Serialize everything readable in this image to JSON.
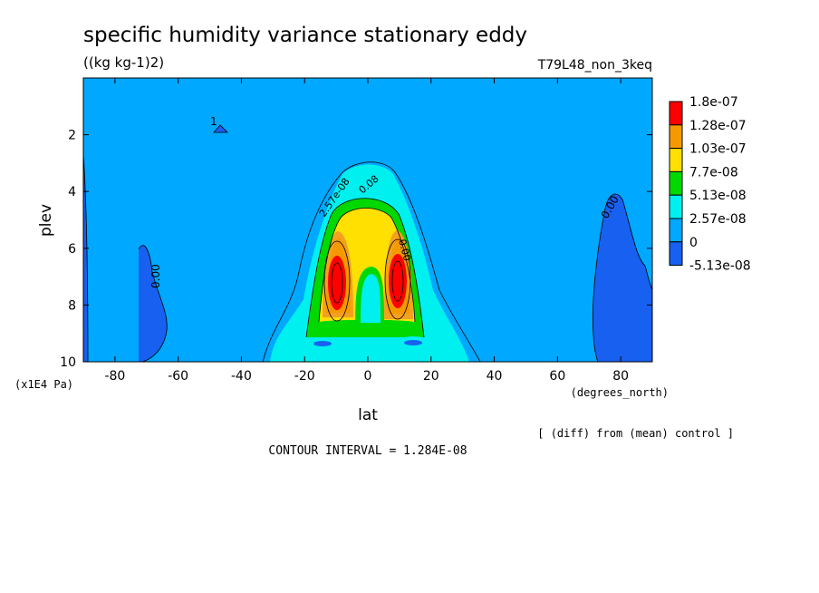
{
  "chart_data": {
    "type": "contour",
    "title": "specific humidity variance stationary eddy",
    "units": "((kg kg-1)2)",
    "run_label": "T79L48_non_3keq",
    "xlabel": "lat",
    "x_units": "(degrees_north)",
    "ylabel": "plev",
    "y_units": "(x1E4 Pa)",
    "xlim": [
      -90,
      90
    ],
    "ylim": [
      10,
      0
    ],
    "x_ticks": [
      -80,
      -60,
      -40,
      -20,
      0,
      20,
      40,
      60,
      80
    ],
    "x_tick_labels": [
      "-80",
      "-60",
      "-40",
      "-20",
      "0",
      "20",
      "40",
      "60",
      "80"
    ],
    "y_ticks": [
      2,
      4,
      6,
      8,
      10
    ],
    "y_tick_labels": [
      "2",
      "4",
      "6",
      "8",
      "10"
    ],
    "colorbar": {
      "labels": [
        "1.8e-07",
        "1.28e-07",
        "1.03e-07",
        "7.7e-08",
        "5.13e-08",
        "2.57e-08",
        "0",
        "-5.13e-08"
      ],
      "colors": [
        "#ff0000",
        "#f49a00",
        "#ffe000",
        "#00d800",
        "#00f0f0",
        "#00a8ff",
        "#1860f0"
      ]
    },
    "contour_labels": [
      "0.00",
      "0.00",
      "0.00",
      "1",
      "2.57e-08",
      "0.08"
    ],
    "footer_note": "[ (diff) from (mean) control ]",
    "contour_interval": "CONTOUR INTERVAL = 1.284E-08",
    "background_color": "#00a8ff"
  }
}
